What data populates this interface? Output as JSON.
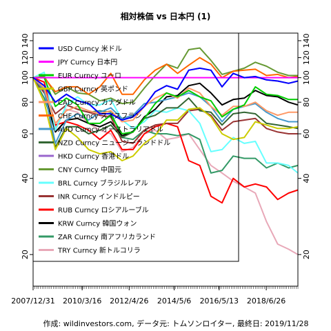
{
  "chart_data": {
    "type": "line",
    "title": "相対株価 vs 日本円 (1)",
    "xlabel": "",
    "ylabel": "",
    "y_scale": "log",
    "ylim": [
      15,
      150
    ],
    "y_ticks": [
      20,
      40,
      60,
      80,
      100,
      120,
      140
    ],
    "y_tick_labels": [
      "20",
      "40",
      "60",
      "80",
      "100",
      "120",
      "140"
    ],
    "x_range": [
      "2007-12-31",
      "2019-11-28"
    ],
    "x_tick_labels": [
      "2007/12/31",
      "2010/3/16",
      "2012/4/26",
      "2014/5/6",
      "2016/5/13",
      "2018/6/26"
    ],
    "x_tick_dates": [
      "2007-12-31",
      "2010-03-16",
      "2012-04-26",
      "2014-05-06",
      "2016-05-13",
      "2018-06-26"
    ],
    "grid": false,
    "legend_position": "top-left",
    "footer": "作成: wildinvestors.com, データ元: トムソンロイター, 最終日: 2019/11/28",
    "x": [
      "2007-12-31",
      "2008-06-30",
      "2008-12-31",
      "2009-06-30",
      "2009-12-31",
      "2010-06-30",
      "2010-12-31",
      "2011-06-30",
      "2011-12-31",
      "2012-06-29",
      "2012-12-31",
      "2013-06-28",
      "2013-12-31",
      "2014-06-30",
      "2014-12-31",
      "2015-06-30",
      "2015-12-31",
      "2016-06-30",
      "2016-12-30",
      "2017-06-30",
      "2017-12-29",
      "2018-06-29",
      "2018-12-31",
      "2019-06-28",
      "2019-11-28"
    ],
    "series": [
      {
        "name": "USD Curncy 米ドル",
        "color": "#0000ff",
        "values": [
          100,
          93,
          80,
          86,
          81,
          79,
          72,
          72,
          68,
          70,
          77,
          88,
          93,
          90,
          107,
          109,
          107,
          92,
          104,
          100,
          101,
          98,
          97,
          95,
          97
        ]
      },
      {
        "name": "JPY Curncy 日本円",
        "color": "#ff00ff",
        "values": [
          100,
          100,
          100,
          100,
          100,
          100,
          100,
          100,
          100,
          100,
          100,
          100,
          100,
          100,
          100,
          100,
          100,
          100,
          100,
          100,
          100,
          100,
          100,
          100,
          100
        ]
      },
      {
        "name": "EUR Curncy ユーロ",
        "color": "#00cc00",
        "values": [
          100,
          100,
          77,
          83,
          78,
          66,
          66,
          71,
          60,
          61,
          69,
          79,
          87,
          84,
          89,
          84,
          81,
          70,
          75,
          78,
          92,
          86,
          85,
          82,
          82
        ]
      },
      {
        "name": "GBP Curncy 英ポンド",
        "color": "#cccc00",
        "values": [
          100,
          80,
          52,
          63,
          58,
          52,
          50,
          51,
          47,
          49,
          55,
          59,
          68,
          68,
          75,
          76,
          70,
          60,
          57,
          58,
          67,
          65,
          63,
          63,
          64
        ]
      },
      {
        "name": "CAD Curncy カナダドル",
        "color": "#ff9966",
        "values": [
          100,
          91,
          66,
          74,
          77,
          74,
          72,
          74,
          67,
          68,
          77,
          83,
          87,
          83,
          91,
          87,
          77,
          71,
          77,
          77,
          80,
          74,
          71,
          73,
          73
        ]
      },
      {
        "name": "CHF Curncy スイスフラン",
        "color": "#ff6600",
        "values": [
          100,
          100,
          88,
          92,
          92,
          86,
          92,
          104,
          86,
          86,
          98,
          107,
          113,
          104,
          112,
          120,
          113,
          100,
          106,
          107,
          108,
          102,
          103,
          100,
          101
        ]
      },
      {
        "name": "AUD Curncy オーストラリアドル",
        "color": "#4499cc",
        "values": [
          100,
          89,
          55,
          68,
          72,
          68,
          73,
          76,
          69,
          71,
          79,
          80,
          82,
          84,
          87,
          84,
          77,
          67,
          75,
          77,
          79,
          73,
          69,
          67,
          67
        ]
      },
      {
        "name": "NZD Curncy ニュージーランドドル",
        "color": "#336633",
        "values": [
          100,
          90,
          53,
          64,
          64,
          60,
          62,
          65,
          58,
          61,
          69,
          71,
          76,
          76,
          83,
          74,
          73,
          65,
          72,
          73,
          72,
          66,
          65,
          64,
          63
        ]
      },
      {
        "name": "HKD Curncy 香港ドル",
        "color": "#9966cc",
        "values": [
          100,
          93,
          80,
          86,
          81,
          79,
          72,
          72,
          68,
          70,
          77,
          88,
          93,
          90,
          107,
          109,
          107,
          92,
          104,
          100,
          101,
          98,
          97,
          95,
          97
        ]
      },
      {
        "name": "CNY Curncy 中国元",
        "color": "#669933",
        "values": [
          100,
          101,
          86,
          92,
          87,
          86,
          81,
          83,
          79,
          80,
          91,
          102,
          113,
          109,
          129,
          131,
          117,
          103,
          106,
          109,
          115,
          111,
          105,
          102,
          102
        ]
      },
      {
        "name": "BRL Curncy ブラジルレアル",
        "color": "#66ffff",
        "values": [
          100,
          105,
          62,
          78,
          84,
          78,
          78,
          82,
          68,
          63,
          67,
          74,
          73,
          76,
          74,
          66,
          51,
          52,
          58,
          55,
          56,
          46,
          46,
          45,
          42
        ]
      },
      {
        "name": "INR Curncy インドルピー",
        "color": "#993333",
        "values": [
          100,
          87,
          72,
          78,
          75,
          73,
          71,
          70,
          56,
          55,
          62,
          65,
          66,
          66,
          74,
          75,
          71,
          62,
          67,
          68,
          69,
          63,
          61,
          60,
          60
        ]
      },
      {
        "name": "RUB Curncy ロシアルーブル",
        "color": "#ff0000",
        "values": [
          100,
          96,
          65,
          67,
          65,
          62,
          57,
          62,
          52,
          52,
          60,
          64,
          66,
          64,
          47,
          45,
          34,
          32,
          40,
          37,
          38,
          37,
          33,
          35,
          36
        ]
      },
      {
        "name": "KRW Curncy 韓国ウォン",
        "color": "#000000",
        "values": [
          100,
          88,
          61,
          68,
          69,
          66,
          64,
          67,
          59,
          61,
          70,
          75,
          84,
          85,
          93,
          95,
          87,
          78,
          82,
          83,
          89,
          85,
          84,
          80,
          78
        ]
      },
      {
        "name": "ZAR Curncy 南アフリカランド",
        "color": "#339966",
        "values": [
          100,
          83,
          62,
          78,
          75,
          73,
          74,
          73,
          58,
          57,
          62,
          60,
          60,
          59,
          60,
          57,
          42,
          43,
          49,
          48,
          48,
          44,
          46,
          44,
          45
        ]
      },
      {
        "name": "TRY Curncy 新トルコリラ",
        "color": "#e8a8b8",
        "values": [
          100,
          83,
          64,
          75,
          73,
          66,
          62,
          60,
          51,
          53,
          60,
          62,
          57,
          58,
          60,
          52,
          45,
          42,
          39,
          37,
          35,
          27,
          22,
          21,
          20
        ]
      }
    ]
  }
}
